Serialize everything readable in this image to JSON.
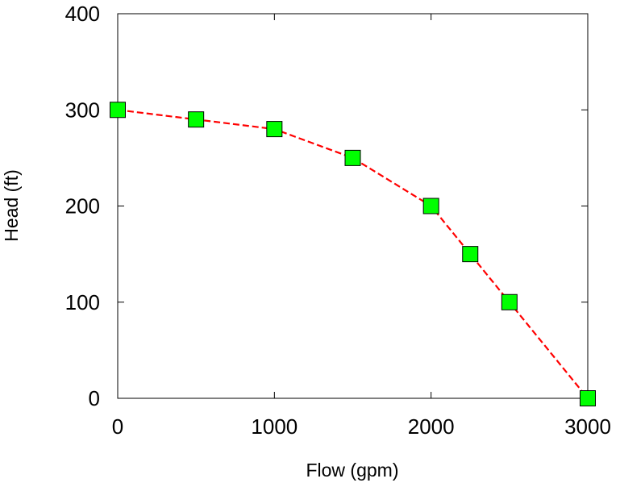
{
  "chart_data": {
    "type": "line",
    "title": "",
    "xlabel": "Flow (gpm)",
    "ylabel": "Head (ft)",
    "xlim": [
      0,
      3000
    ],
    "ylim": [
      0,
      400
    ],
    "xticks": [
      0,
      1000,
      2000,
      3000
    ],
    "yticks": [
      0,
      100,
      200,
      300,
      400
    ],
    "x_tick_labels": [
      "0",
      "1000",
      "2000",
      "3000"
    ],
    "y_tick_labels": [
      "0",
      "100",
      "200",
      "300",
      "400"
    ],
    "grid": false,
    "legend": "none",
    "series": [
      {
        "x": [
          0,
          500,
          1000,
          1500,
          2000,
          2250,
          2500,
          3000
        ],
        "y": [
          300,
          290,
          280,
          250,
          200,
          150,
          100,
          0
        ],
        "line_color": "#ff0000",
        "line_style": "dashed",
        "marker": "square",
        "marker_color": "#00ff00",
        "marker_edge_color": "#000000"
      }
    ]
  }
}
